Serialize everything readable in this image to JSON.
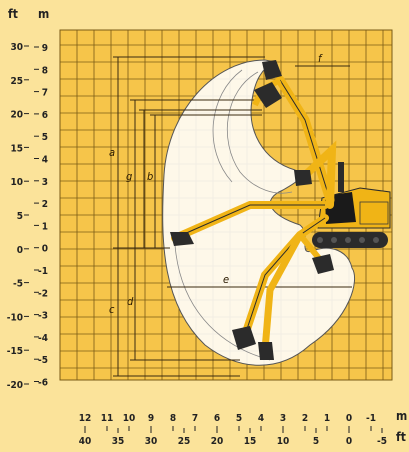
{
  "diagram": {
    "units": {
      "ft": "ft",
      "m": "m"
    },
    "y_axis_ft": [
      "30",
      "25",
      "20",
      "15",
      "10",
      "5",
      "0",
      "-5",
      "-10",
      "-15",
      "-20"
    ],
    "y_axis_m": [
      "9",
      "8",
      "7",
      "6",
      "5",
      "4",
      "3",
      "2",
      "1",
      "0",
      "-1",
      "-2",
      "-3",
      "-4",
      "-5",
      "-6"
    ],
    "x_axis_m": [
      "12",
      "11",
      "10",
      "9",
      "8",
      "7",
      "6",
      "5",
      "4",
      "3",
      "2",
      "1",
      "0",
      "-1"
    ],
    "x_axis_ft": [
      "40",
      "35",
      "30",
      "25",
      "20",
      "15",
      "10",
      "5",
      "0",
      "-5"
    ],
    "dimension_labels": {
      "a": "a",
      "b": "b",
      "c": "c",
      "d": "d",
      "e": "e",
      "f": "f",
      "g": "g"
    },
    "colors": {
      "background": "#fbe39a",
      "grid_fill": "#f6c54a",
      "grid_line": "#7a5b16",
      "envelope_fill": "#ffffff",
      "machine_yellow": "#f0b416",
      "machine_dark": "#2b2b2b",
      "dimension_line": "#3a2a10"
    },
    "icons": [
      "excavator-icon"
    ]
  }
}
